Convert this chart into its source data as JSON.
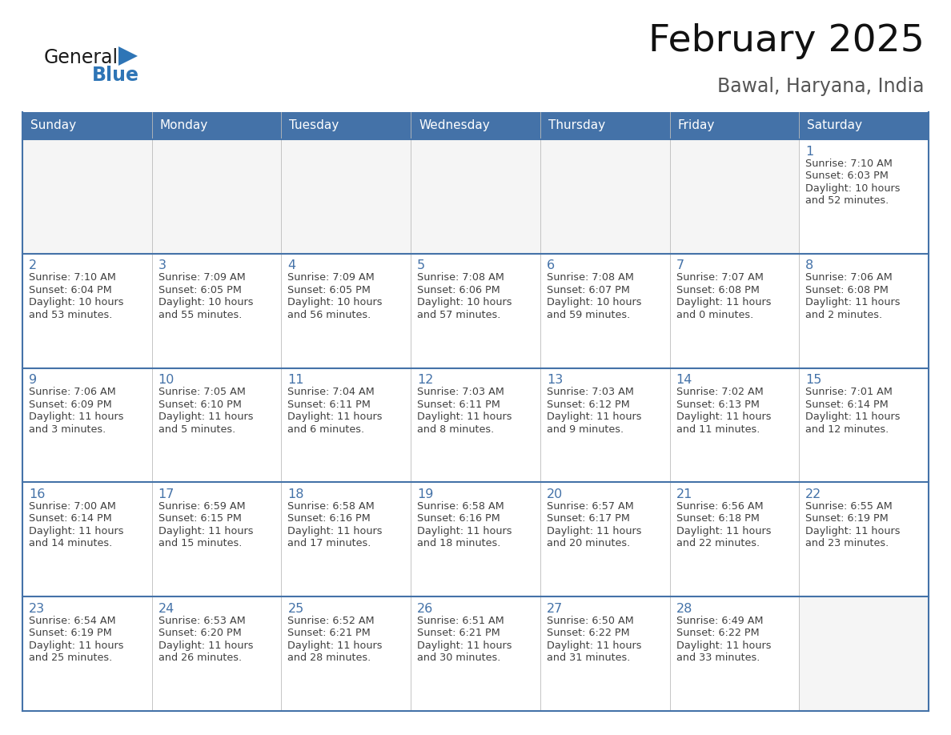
{
  "title": "February 2025",
  "subtitle": "Bawal, Haryana, India",
  "header_bg": "#4472A8",
  "header_text_color": "#FFFFFF",
  "border_color": "#4472A8",
  "row_sep_color": "#4472A8",
  "col_sep_color": "#C0C0C0",
  "day_number_color": "#4472A8",
  "info_text_color": "#404040",
  "cell_bg_empty": "#F5F5F5",
  "cell_bg_filled": "#FFFFFF",
  "days_of_week": [
    "Sunday",
    "Monday",
    "Tuesday",
    "Wednesday",
    "Thursday",
    "Friday",
    "Saturday"
  ],
  "calendar_data": [
    [
      null,
      null,
      null,
      null,
      null,
      null,
      1
    ],
    [
      2,
      3,
      4,
      5,
      6,
      7,
      8
    ],
    [
      9,
      10,
      11,
      12,
      13,
      14,
      15
    ],
    [
      16,
      17,
      18,
      19,
      20,
      21,
      22
    ],
    [
      23,
      24,
      25,
      26,
      27,
      28,
      null
    ]
  ],
  "sun_data": {
    "1": {
      "rise": "7:10 AM",
      "set": "6:03 PM",
      "daylight": "10 hours and 52 minutes."
    },
    "2": {
      "rise": "7:10 AM",
      "set": "6:04 PM",
      "daylight": "10 hours and 53 minutes."
    },
    "3": {
      "rise": "7:09 AM",
      "set": "6:05 PM",
      "daylight": "10 hours and 55 minutes."
    },
    "4": {
      "rise": "7:09 AM",
      "set": "6:05 PM",
      "daylight": "10 hours and 56 minutes."
    },
    "5": {
      "rise": "7:08 AM",
      "set": "6:06 PM",
      "daylight": "10 hours and 57 minutes."
    },
    "6": {
      "rise": "7:08 AM",
      "set": "6:07 PM",
      "daylight": "10 hours and 59 minutes."
    },
    "7": {
      "rise": "7:07 AM",
      "set": "6:08 PM",
      "daylight": "11 hours and 0 minutes."
    },
    "8": {
      "rise": "7:06 AM",
      "set": "6:08 PM",
      "daylight": "11 hours and 2 minutes."
    },
    "9": {
      "rise": "7:06 AM",
      "set": "6:09 PM",
      "daylight": "11 hours and 3 minutes."
    },
    "10": {
      "rise": "7:05 AM",
      "set": "6:10 PM",
      "daylight": "11 hours and 5 minutes."
    },
    "11": {
      "rise": "7:04 AM",
      "set": "6:11 PM",
      "daylight": "11 hours and 6 minutes."
    },
    "12": {
      "rise": "7:03 AM",
      "set": "6:11 PM",
      "daylight": "11 hours and 8 minutes."
    },
    "13": {
      "rise": "7:03 AM",
      "set": "6:12 PM",
      "daylight": "11 hours and 9 minutes."
    },
    "14": {
      "rise": "7:02 AM",
      "set": "6:13 PM",
      "daylight": "11 hours and 11 minutes."
    },
    "15": {
      "rise": "7:01 AM",
      "set": "6:14 PM",
      "daylight": "11 hours and 12 minutes."
    },
    "16": {
      "rise": "7:00 AM",
      "set": "6:14 PM",
      "daylight": "11 hours and 14 minutes."
    },
    "17": {
      "rise": "6:59 AM",
      "set": "6:15 PM",
      "daylight": "11 hours and 15 minutes."
    },
    "18": {
      "rise": "6:58 AM",
      "set": "6:16 PM",
      "daylight": "11 hours and 17 minutes."
    },
    "19": {
      "rise": "6:58 AM",
      "set": "6:16 PM",
      "daylight": "11 hours and 18 minutes."
    },
    "20": {
      "rise": "6:57 AM",
      "set": "6:17 PM",
      "daylight": "11 hours and 20 minutes."
    },
    "21": {
      "rise": "6:56 AM",
      "set": "6:18 PM",
      "daylight": "11 hours and 22 minutes."
    },
    "22": {
      "rise": "6:55 AM",
      "set": "6:19 PM",
      "daylight": "11 hours and 23 minutes."
    },
    "23": {
      "rise": "6:54 AM",
      "set": "6:19 PM",
      "daylight": "11 hours and 25 minutes."
    },
    "24": {
      "rise": "6:53 AM",
      "set": "6:20 PM",
      "daylight": "11 hours and 26 minutes."
    },
    "25": {
      "rise": "6:52 AM",
      "set": "6:21 PM",
      "daylight": "11 hours and 28 minutes."
    },
    "26": {
      "rise": "6:51 AM",
      "set": "6:21 PM",
      "daylight": "11 hours and 30 minutes."
    },
    "27": {
      "rise": "6:50 AM",
      "set": "6:22 PM",
      "daylight": "11 hours and 31 minutes."
    },
    "28": {
      "rise": "6:49 AM",
      "set": "6:22 PM",
      "daylight": "11 hours and 33 minutes."
    }
  },
  "logo_text_general": "General",
  "logo_text_blue": "Blue",
  "logo_triangle_color": "#2E75B6",
  "logo_general_color": "#1a1a1a",
  "logo_blue_color": "#2E75B6"
}
